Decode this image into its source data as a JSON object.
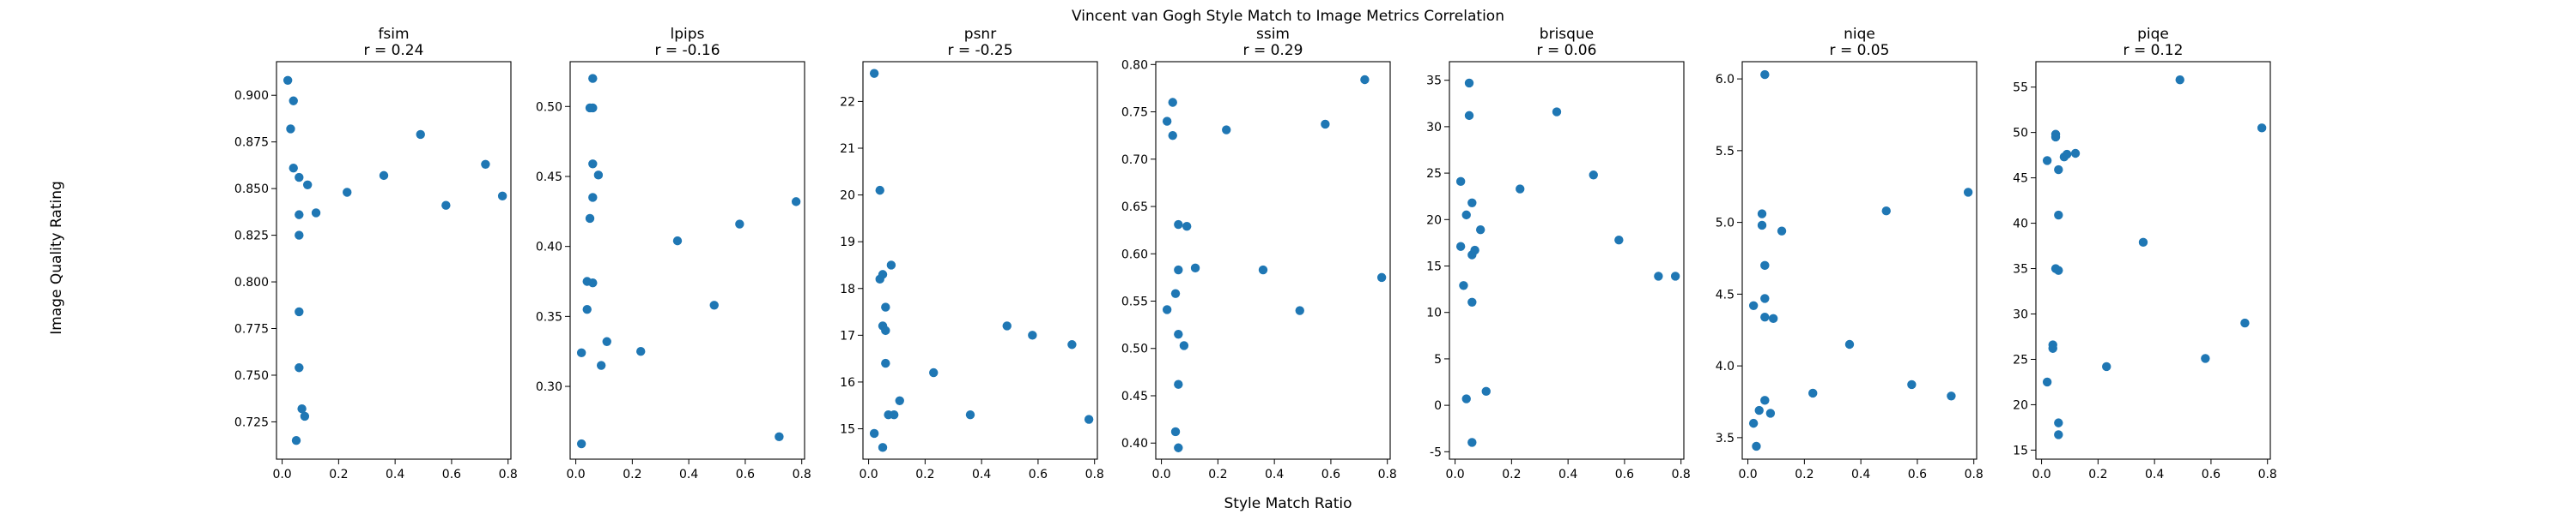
{
  "figure": {
    "title": "Vincent van Gogh Style Match to Image Metrics Correlation",
    "xlabel": "Style Match Ratio",
    "ylabel": "Image Quality Rating",
    "point_color": "#1f77b4"
  },
  "chart_data": [
    {
      "type": "scatter",
      "title": "fsim",
      "subtitle": "r = 0.24",
      "xlim": [
        -0.02,
        0.81
      ],
      "ylim": [
        0.705,
        0.918
      ],
      "xticks": [
        "0.0",
        "0.2",
        "0.4",
        "0.6",
        "0.8"
      ],
      "yticks": [
        "0.725",
        "0.750",
        "0.775",
        "0.800",
        "0.825",
        "0.850",
        "0.875",
        "0.900"
      ],
      "x": [
        0.02,
        0.03,
        0.04,
        0.04,
        0.05,
        0.06,
        0.06,
        0.06,
        0.06,
        0.06,
        0.07,
        0.08,
        0.09,
        0.12,
        0.23,
        0.36,
        0.49,
        0.58,
        0.72,
        0.78
      ],
      "y": [
        0.908,
        0.882,
        0.897,
        0.861,
        0.715,
        0.856,
        0.836,
        0.825,
        0.784,
        0.754,
        0.732,
        0.728,
        0.852,
        0.837,
        0.848,
        0.857,
        0.879,
        0.841,
        0.863,
        0.846
      ]
    },
    {
      "type": "scatter",
      "title": "lpips",
      "subtitle": "r = -0.16",
      "xlim": [
        -0.02,
        0.81
      ],
      "ylim": [
        0.248,
        0.532
      ],
      "xticks": [
        "0.0",
        "0.2",
        "0.4",
        "0.6",
        "0.8"
      ],
      "yticks": [
        "0.30",
        "0.35",
        "0.40",
        "0.45",
        "0.50"
      ],
      "x": [
        0.02,
        0.02,
        0.04,
        0.04,
        0.05,
        0.05,
        0.06,
        0.06,
        0.06,
        0.06,
        0.06,
        0.08,
        0.09,
        0.11,
        0.23,
        0.36,
        0.49,
        0.58,
        0.72,
        0.78
      ],
      "y": [
        0.324,
        0.259,
        0.375,
        0.355,
        0.499,
        0.42,
        0.52,
        0.499,
        0.459,
        0.435,
        0.374,
        0.451,
        0.315,
        0.332,
        0.325,
        0.404,
        0.358,
        0.416,
        0.264,
        0.432
      ]
    },
    {
      "type": "scatter",
      "title": "psnr",
      "subtitle": "r = -0.25",
      "xlim": [
        -0.02,
        0.81
      ],
      "ylim": [
        14.35,
        22.85
      ],
      "xticks": [
        "0.0",
        "0.2",
        "0.4",
        "0.6",
        "0.8"
      ],
      "yticks": [
        "15",
        "16",
        "17",
        "18",
        "19",
        "20",
        "21",
        "22"
      ],
      "x": [
        0.02,
        0.02,
        0.04,
        0.04,
        0.05,
        0.05,
        0.06,
        0.06,
        0.06,
        0.07,
        0.08,
        0.09,
        0.11,
        0.23,
        0.36,
        0.49,
        0.58,
        0.72,
        0.78,
        0.05
      ],
      "y": [
        22.6,
        14.9,
        20.1,
        18.2,
        18.3,
        17.2,
        17.6,
        17.1,
        16.4,
        15.3,
        18.5,
        15.3,
        15.6,
        16.2,
        15.3,
        17.2,
        17.0,
        16.8,
        15.2,
        14.6
      ]
    },
    {
      "type": "scatter",
      "title": "ssim",
      "subtitle": "r = 0.29",
      "xlim": [
        -0.02,
        0.81
      ],
      "ylim": [
        0.383,
        0.803
      ],
      "xticks": [
        "0.0",
        "0.2",
        "0.4",
        "0.6",
        "0.8"
      ],
      "yticks": [
        "0.40",
        "0.45",
        "0.50",
        "0.55",
        "0.60",
        "0.65",
        "0.70",
        "0.75",
        "0.80"
      ],
      "x": [
        0.02,
        0.02,
        0.04,
        0.04,
        0.05,
        0.05,
        0.06,
        0.06,
        0.06,
        0.06,
        0.06,
        0.08,
        0.09,
        0.12,
        0.23,
        0.36,
        0.49,
        0.58,
        0.72,
        0.78
      ],
      "y": [
        0.74,
        0.541,
        0.725,
        0.76,
        0.558,
        0.412,
        0.631,
        0.583,
        0.515,
        0.462,
        0.395,
        0.503,
        0.629,
        0.585,
        0.731,
        0.583,
        0.54,
        0.737,
        0.784,
        0.575
      ]
    },
    {
      "type": "scatter",
      "title": "brisque",
      "subtitle": "r = 0.06",
      "xlim": [
        -0.02,
        0.81
      ],
      "ylim": [
        -5.8,
        37.0
      ],
      "xticks": [
        "0.0",
        "0.2",
        "0.4",
        "0.6",
        "0.8"
      ],
      "yticks": [
        "-5",
        "0",
        "5",
        "10",
        "15",
        "20",
        "25",
        "30",
        "35"
      ],
      "x": [
        0.02,
        0.02,
        0.03,
        0.04,
        0.04,
        0.05,
        0.05,
        0.06,
        0.06,
        0.06,
        0.06,
        0.07,
        0.09,
        0.11,
        0.23,
        0.36,
        0.49,
        0.58,
        0.72,
        0.78
      ],
      "y": [
        24.1,
        17.1,
        12.9,
        20.5,
        0.7,
        31.2,
        34.7,
        21.8,
        16.2,
        11.1,
        -4.0,
        16.7,
        18.9,
        1.5,
        23.3,
        31.6,
        24.8,
        17.8,
        13.9,
        13.9
      ]
    },
    {
      "type": "scatter",
      "title": "niqe",
      "subtitle": "r = 0.05",
      "xlim": [
        -0.02,
        0.81
      ],
      "ylim": [
        3.35,
        6.12
      ],
      "xticks": [
        "0.0",
        "0.2",
        "0.4",
        "0.6",
        "0.8"
      ],
      "yticks": [
        "3.5",
        "4.0",
        "4.5",
        "5.0",
        "5.5",
        "6.0"
      ],
      "x": [
        0.02,
        0.02,
        0.03,
        0.04,
        0.05,
        0.05,
        0.06,
        0.06,
        0.06,
        0.06,
        0.06,
        0.08,
        0.09,
        0.12,
        0.23,
        0.36,
        0.49,
        0.58,
        0.72,
        0.78
      ],
      "y": [
        4.42,
        3.6,
        3.44,
        3.69,
        5.06,
        4.98,
        6.03,
        4.7,
        4.47,
        4.34,
        3.76,
        3.67,
        4.33,
        4.94,
        3.81,
        4.15,
        5.08,
        3.87,
        3.79,
        5.21
      ]
    },
    {
      "type": "scatter",
      "title": "piqe",
      "subtitle": "r = 0.12",
      "xlim": [
        -0.02,
        0.81
      ],
      "ylim": [
        14.0,
        57.8
      ],
      "xticks": [
        "0.0",
        "0.2",
        "0.4",
        "0.6",
        "0.8"
      ],
      "yticks": [
        "15",
        "20",
        "25",
        "30",
        "35",
        "40",
        "45",
        "50",
        "55"
      ],
      "x": [
        0.02,
        0.02,
        0.04,
        0.04,
        0.05,
        0.05,
        0.05,
        0.06,
        0.06,
        0.06,
        0.06,
        0.06,
        0.08,
        0.09,
        0.12,
        0.23,
        0.36,
        0.49,
        0.58,
        0.72,
        0.78
      ],
      "y": [
        46.9,
        22.5,
        26.2,
        26.6,
        49.5,
        49.8,
        35.0,
        34.8,
        45.9,
        40.9,
        18.0,
        16.7,
        47.3,
        47.6,
        47.7,
        24.2,
        37.9,
        55.8,
        25.1,
        29.0,
        50.5
      ]
    }
  ]
}
